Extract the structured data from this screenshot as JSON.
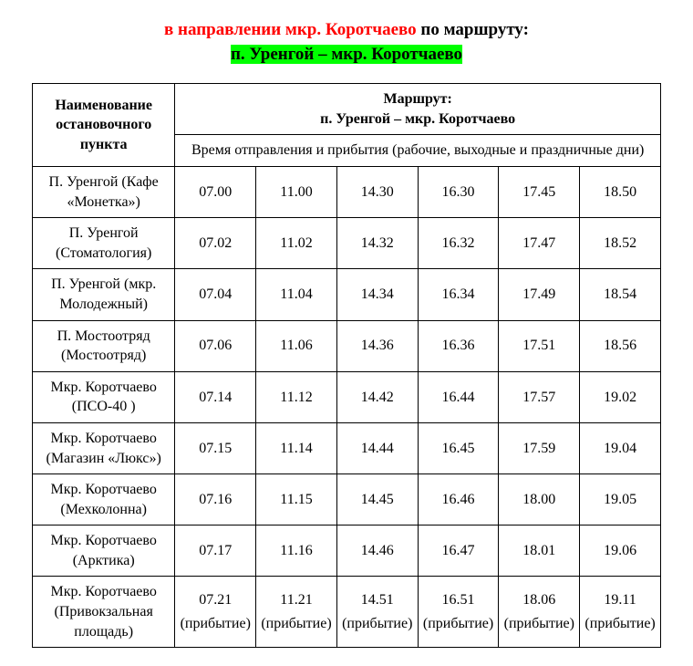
{
  "title": {
    "direction_prefix": "в направлении мкр. Коротчаево",
    "direction_suffix": " по маршруту:",
    "route": "п. Уренгой – мкр. Коротчаево",
    "direction_color": "#ff0000",
    "suffix_color": "#000000",
    "route_bg": "#00ff00",
    "fontsize": 19
  },
  "table": {
    "header_stop": "Наименование остановочного пункта",
    "header_route_label": "Маршрут:",
    "header_route_name": "п. Уренгой – мкр. Коротчаево",
    "header_time": "Время отправления и прибытия (рабочие, выходные и праздничные дни)",
    "border_color": "#000000",
    "fontsize": 16,
    "columns": 6,
    "rows": [
      {
        "stop": "П. Уренгой (Кафе «Монетка»)",
        "times": [
          "07.00",
          "11.00",
          "14.30",
          "16.30",
          "17.45",
          "18.50"
        ],
        "arrival": false
      },
      {
        "stop": "П. Уренгой (Стоматология)",
        "times": [
          "07.02",
          "11.02",
          "14.32",
          "16.32",
          "17.47",
          "18.52"
        ],
        "arrival": false
      },
      {
        "stop": "П. Уренгой (мкр. Молодежный)",
        "times": [
          "07.04",
          "11.04",
          "14.34",
          "16.34",
          "17.49",
          "18.54"
        ],
        "arrival": false
      },
      {
        "stop": "П. Мостоотряд (Мостоотряд)",
        "times": [
          "07.06",
          "11.06",
          "14.36",
          "16.36",
          "17.51",
          "18.56"
        ],
        "arrival": false
      },
      {
        "stop": "Мкр. Коротчаево (ПСО-40 )",
        "times": [
          "07.14",
          "11.12",
          "14.42",
          "16.44",
          "17.57",
          "19.02"
        ],
        "arrival": false
      },
      {
        "stop": "Мкр. Коротчаево (Магазин «Люкс»)",
        "times": [
          "07.15",
          "11.14",
          "14.44",
          "16.45",
          "17.59",
          "19.04"
        ],
        "arrival": false
      },
      {
        "stop": "Мкр. Коротчаево (Мехколонна)",
        "times": [
          "07.16",
          "11.15",
          "14.45",
          "16.46",
          "18.00",
          "19.05"
        ],
        "arrival": false
      },
      {
        "stop": "Мкр. Коротчаево (Арктика)",
        "times": [
          "07.17",
          "11.16",
          "14.46",
          "16.47",
          "18.01",
          "19.06"
        ],
        "arrival": false
      },
      {
        "stop": "Мкр. Коротчаево (Привокзальная площадь)",
        "times": [
          "07.21",
          "11.21",
          "14.51",
          "16.51",
          "18.06",
          "19.11"
        ],
        "arrival": true
      }
    ],
    "arrival_word": "(прибытие)",
    "arrival_word_split": "(прибыт ие)"
  }
}
